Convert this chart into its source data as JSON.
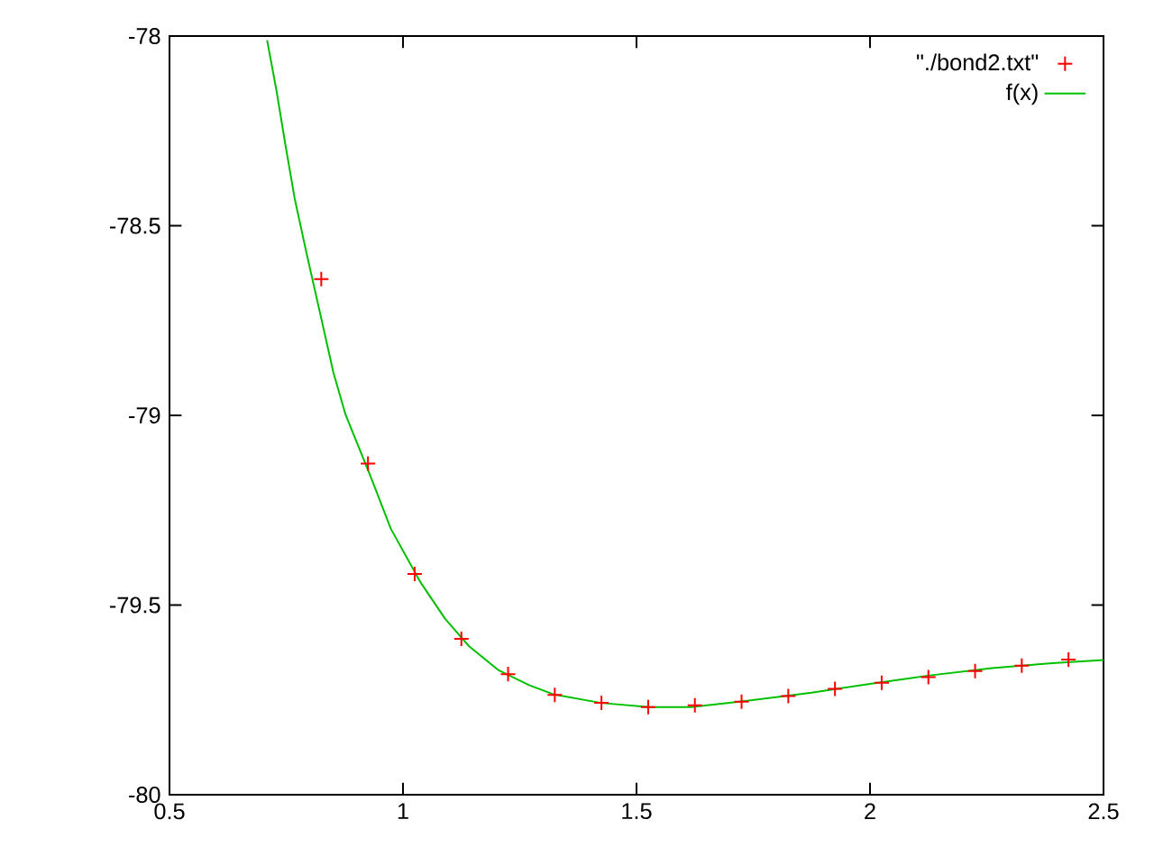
{
  "chart_data": {
    "type": "line",
    "xlim": [
      0.5,
      2.5
    ],
    "ylim": [
      -80,
      -78
    ],
    "xticks": [
      0.5,
      1,
      1.5,
      2,
      2.5
    ],
    "yticks": [
      -80,
      -79.5,
      -79,
      -78.5,
      -78
    ],
    "grid": false,
    "legend": "top right",
    "series": [
      {
        "name": "\"./bond2.txt\"",
        "type": "scatter",
        "marker": "cross",
        "color": "#ff0000",
        "x": [
          0.825,
          0.925,
          1.025,
          1.125,
          1.225,
          1.325,
          1.425,
          1.525,
          1.625,
          1.725,
          1.825,
          1.925,
          2.025,
          2.125,
          2.225,
          2.325,
          2.425
        ],
        "values": [
          -78.641,
          -79.127,
          -79.418,
          -79.589,
          -79.682,
          -79.737,
          -79.758,
          -79.769,
          -79.764,
          -79.755,
          -79.74,
          -79.721,
          -79.705,
          -79.69,
          -79.674,
          -79.66,
          -79.644
        ]
      },
      {
        "name": "f(x)",
        "type": "line",
        "marker": "none",
        "line_style": "solid",
        "color": "#00c000",
        "x": [
          0.709,
          0.729,
          0.748,
          0.768,
          0.793,
          0.822,
          0.851,
          0.877,
          0.929,
          0.974,
          1.038,
          1.09,
          1.141,
          1.205,
          1.27,
          1.321,
          1.424,
          1.527,
          1.617,
          1.733,
          1.875,
          2.003,
          2.132,
          2.261,
          2.39,
          2.5
        ],
        "values": [
          -78.011,
          -78.143,
          -78.285,
          -78.428,
          -78.57,
          -78.728,
          -78.887,
          -78.998,
          -79.156,
          -79.299,
          -79.441,
          -79.536,
          -79.608,
          -79.672,
          -79.711,
          -79.735,
          -79.758,
          -79.769,
          -79.769,
          -79.753,
          -79.731,
          -79.707,
          -79.685,
          -79.666,
          -79.653,
          -79.645
        ]
      }
    ]
  }
}
